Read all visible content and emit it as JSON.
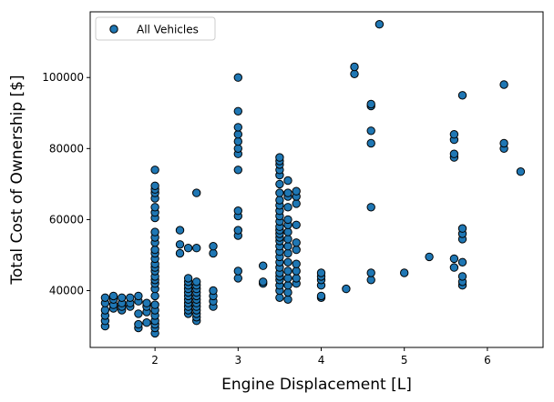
{
  "chart_data": {
    "type": "scatter",
    "xlabel": "Engine Displacement [L]",
    "ylabel": "Total Cost of Ownership [$]",
    "xlim": [
      1.22,
      6.67
    ],
    "ylim": [
      24000,
      118500
    ],
    "xticks": [
      2,
      3,
      4,
      5,
      6
    ],
    "yticks": [
      40000,
      60000,
      80000,
      100000
    ],
    "grid": false,
    "legend": {
      "position": "top-left",
      "entries": [
        "All Vehicles"
      ]
    },
    "series": [
      {
        "name": "All Vehicles",
        "color": "#1f77b4",
        "edgecolor": "#000000",
        "points": [
          [
            1.4,
            30000
          ],
          [
            1.4,
            31500
          ],
          [
            1.4,
            33000
          ],
          [
            1.4,
            34500
          ],
          [
            1.4,
            36500
          ],
          [
            1.4,
            38000
          ],
          [
            1.5,
            35000
          ],
          [
            1.5,
            36000
          ],
          [
            1.5,
            37500
          ],
          [
            1.5,
            38500
          ],
          [
            1.6,
            34500
          ],
          [
            1.6,
            35500
          ],
          [
            1.6,
            36500
          ],
          [
            1.6,
            38000
          ],
          [
            1.7,
            35500
          ],
          [
            1.7,
            36500
          ],
          [
            1.7,
            38000
          ],
          [
            1.8,
            29500
          ],
          [
            1.8,
            30500
          ],
          [
            1.8,
            33500
          ],
          [
            1.8,
            37000
          ],
          [
            1.8,
            38500
          ],
          [
            1.9,
            31000
          ],
          [
            1.9,
            34000
          ],
          [
            1.9,
            35500
          ],
          [
            1.9,
            36500
          ],
          [
            2.0,
            28000
          ],
          [
            2.0,
            29500
          ],
          [
            2.0,
            30500
          ],
          [
            2.0,
            31500
          ],
          [
            2.0,
            33000
          ],
          [
            2.0,
            34500
          ],
          [
            2.0,
            36000
          ],
          [
            2.0,
            38500
          ],
          [
            2.0,
            40500
          ],
          [
            2.0,
            42000
          ],
          [
            2.0,
            43000
          ],
          [
            2.0,
            44000
          ],
          [
            2.0,
            45500
          ],
          [
            2.0,
            46500
          ],
          [
            2.0,
            47500
          ],
          [
            2.0,
            49000
          ],
          [
            2.0,
            50500
          ],
          [
            2.0,
            51500
          ],
          [
            2.0,
            53500
          ],
          [
            2.0,
            55000
          ],
          [
            2.0,
            56500
          ],
          [
            2.0,
            60500
          ],
          [
            2.0,
            62000
          ],
          [
            2.0,
            63500
          ],
          [
            2.0,
            66000
          ],
          [
            2.0,
            67500
          ],
          [
            2.0,
            68500
          ],
          [
            2.0,
            69500
          ],
          [
            2.0,
            74000
          ],
          [
            2.3,
            50500
          ],
          [
            2.3,
            53000
          ],
          [
            2.3,
            57000
          ],
          [
            2.4,
            33500
          ],
          [
            2.4,
            34500
          ],
          [
            2.4,
            35500
          ],
          [
            2.4,
            36500
          ],
          [
            2.4,
            37500
          ],
          [
            2.4,
            38500
          ],
          [
            2.4,
            39500
          ],
          [
            2.4,
            40500
          ],
          [
            2.4,
            41500
          ],
          [
            2.4,
            42500
          ],
          [
            2.4,
            43500
          ],
          [
            2.4,
            52000
          ],
          [
            2.5,
            31500
          ],
          [
            2.5,
            32500
          ],
          [
            2.5,
            33500
          ],
          [
            2.5,
            34500
          ],
          [
            2.5,
            35500
          ],
          [
            2.5,
            36500
          ],
          [
            2.5,
            37500
          ],
          [
            2.5,
            38500
          ],
          [
            2.5,
            39500
          ],
          [
            2.5,
            40500
          ],
          [
            2.5,
            41500
          ],
          [
            2.5,
            42500
          ],
          [
            2.5,
            52000
          ],
          [
            2.5,
            67500
          ],
          [
            2.7,
            35500
          ],
          [
            2.7,
            37000
          ],
          [
            2.7,
            38500
          ],
          [
            2.7,
            40000
          ],
          [
            2.7,
            50500
          ],
          [
            2.7,
            52500
          ],
          [
            3.0,
            43500
          ],
          [
            3.0,
            45500
          ],
          [
            3.0,
            55500
          ],
          [
            3.0,
            57000
          ],
          [
            3.0,
            61000
          ],
          [
            3.0,
            62500
          ],
          [
            3.0,
            74000
          ],
          [
            3.0,
            78500
          ],
          [
            3.0,
            80000
          ],
          [
            3.0,
            82000
          ],
          [
            3.0,
            84000
          ],
          [
            3.0,
            86000
          ],
          [
            3.0,
            90500
          ],
          [
            3.0,
            100000
          ],
          [
            3.3,
            42000
          ],
          [
            3.3,
            42500
          ],
          [
            3.3,
            47000
          ],
          [
            3.5,
            38000
          ],
          [
            3.5,
            40000
          ],
          [
            3.5,
            41500
          ],
          [
            3.5,
            43000
          ],
          [
            3.5,
            44000
          ],
          [
            3.5,
            45000
          ],
          [
            3.5,
            46500
          ],
          [
            3.5,
            48000
          ],
          [
            3.5,
            49500
          ],
          [
            3.5,
            51000
          ],
          [
            3.5,
            52500
          ],
          [
            3.5,
            54000
          ],
          [
            3.5,
            55000
          ],
          [
            3.5,
            56000
          ],
          [
            3.5,
            57000
          ],
          [
            3.5,
            58000
          ],
          [
            3.5,
            59500
          ],
          [
            3.5,
            61000
          ],
          [
            3.5,
            62500
          ],
          [
            3.5,
            64000
          ],
          [
            3.5,
            65500
          ],
          [
            3.5,
            67500
          ],
          [
            3.5,
            70000
          ],
          [
            3.5,
            72500
          ],
          [
            3.5,
            74000
          ],
          [
            3.5,
            75500
          ],
          [
            3.5,
            76500
          ],
          [
            3.5,
            77500
          ],
          [
            3.6,
            37500
          ],
          [
            3.6,
            39500
          ],
          [
            3.6,
            41500
          ],
          [
            3.6,
            43500
          ],
          [
            3.6,
            45500
          ],
          [
            3.6,
            48000
          ],
          [
            3.6,
            50500
          ],
          [
            3.6,
            52500
          ],
          [
            3.6,
            54500
          ],
          [
            3.6,
            56500
          ],
          [
            3.6,
            58500
          ],
          [
            3.6,
            60000
          ],
          [
            3.6,
            63500
          ],
          [
            3.6,
            66500
          ],
          [
            3.6,
            67500
          ],
          [
            3.6,
            71000
          ],
          [
            3.7,
            42000
          ],
          [
            3.7,
            43500
          ],
          [
            3.7,
            45500
          ],
          [
            3.7,
            47500
          ],
          [
            3.7,
            51500
          ],
          [
            3.7,
            53500
          ],
          [
            3.7,
            58500
          ],
          [
            3.7,
            64500
          ],
          [
            3.7,
            66500
          ],
          [
            3.7,
            68000
          ],
          [
            4.0,
            38000
          ],
          [
            4.0,
            38500
          ],
          [
            4.0,
            41500
          ],
          [
            4.0,
            43000
          ],
          [
            4.0,
            44000
          ],
          [
            4.0,
            45000
          ],
          [
            4.3,
            40500
          ],
          [
            4.4,
            101000
          ],
          [
            4.4,
            103000
          ],
          [
            4.6,
            43000
          ],
          [
            4.6,
            45000
          ],
          [
            4.6,
            63500
          ],
          [
            4.6,
            81500
          ],
          [
            4.6,
            85000
          ],
          [
            4.6,
            92000
          ],
          [
            4.6,
            92500
          ],
          [
            4.7,
            115000
          ],
          [
            5.0,
            45000
          ],
          [
            5.3,
            49500
          ],
          [
            5.6,
            46500
          ],
          [
            5.6,
            49000
          ],
          [
            5.6,
            77500
          ],
          [
            5.6,
            78500
          ],
          [
            5.6,
            82500
          ],
          [
            5.6,
            84000
          ],
          [
            5.7,
            41500
          ],
          [
            5.7,
            42500
          ],
          [
            5.7,
            44000
          ],
          [
            5.7,
            48000
          ],
          [
            5.7,
            54500
          ],
          [
            5.7,
            56000
          ],
          [
            5.7,
            57500
          ],
          [
            5.7,
            95000
          ],
          [
            6.2,
            80000
          ],
          [
            6.2,
            81500
          ],
          [
            6.2,
            98000
          ],
          [
            6.4,
            73500
          ]
        ]
      }
    ]
  }
}
